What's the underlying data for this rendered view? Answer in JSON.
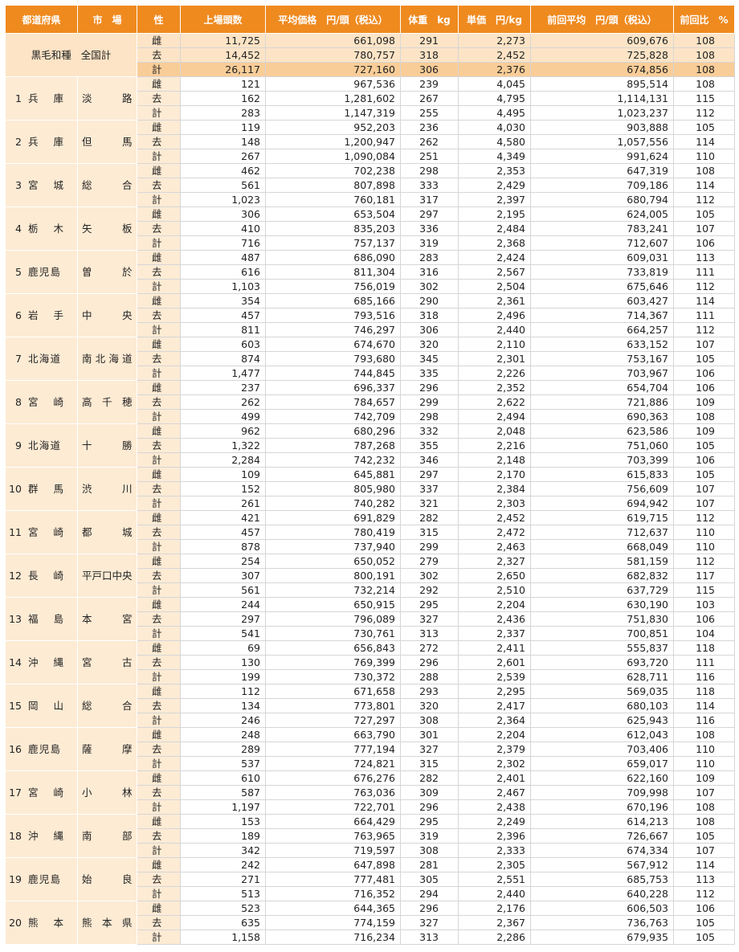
{
  "table": {
    "header": [
      "都道府県",
      "市　場",
      "性",
      "上場頭数",
      "平均価格　円/頭（税込）",
      "体重　kg",
      "単価　円/kg",
      "前回平均　円/頭（税込）",
      "前回比　%"
    ],
    "total": {
      "breed": "黒毛和種",
      "label": "全国計",
      "rows": [
        [
          "雌",
          "11,725",
          "661,098",
          "291",
          "2,273",
          "609,676",
          "108"
        ],
        [
          "去",
          "14,452",
          "780,757",
          "318",
          "2,452",
          "725,828",
          "108"
        ],
        [
          "計",
          "26,117",
          "727,160",
          "306",
          "2,376",
          "674,856",
          "108"
        ]
      ]
    },
    "markets": [
      {
        "no": "1",
        "pref": "兵庫",
        "market": "淡路",
        "rows": [
          [
            "雌",
            "121",
            "967,536",
            "239",
            "4,045",
            "895,514",
            "108"
          ],
          [
            "去",
            "162",
            "1,281,602",
            "267",
            "4,795",
            "1,114,131",
            "115"
          ],
          [
            "計",
            "283",
            "1,147,319",
            "255",
            "4,495",
            "1,023,237",
            "112"
          ]
        ]
      },
      {
        "no": "2",
        "pref": "兵庫",
        "market": "但馬",
        "rows": [
          [
            "雌",
            "119",
            "952,203",
            "236",
            "4,030",
            "903,888",
            "105"
          ],
          [
            "去",
            "148",
            "1,200,947",
            "262",
            "4,580",
            "1,057,556",
            "114"
          ],
          [
            "計",
            "267",
            "1,090,084",
            "251",
            "4,349",
            "991,624",
            "110"
          ]
        ]
      },
      {
        "no": "3",
        "pref": "宮城",
        "market": "総合",
        "rows": [
          [
            "雌",
            "462",
            "702,238",
            "298",
            "2,353",
            "647,319",
            "108"
          ],
          [
            "去",
            "561",
            "807,898",
            "333",
            "2,429",
            "709,186",
            "114"
          ],
          [
            "計",
            "1,023",
            "760,181",
            "317",
            "2,397",
            "680,794",
            "112"
          ]
        ]
      },
      {
        "no": "4",
        "pref": "栃木",
        "market": "矢板",
        "rows": [
          [
            "雌",
            "306",
            "653,504",
            "297",
            "2,195",
            "624,005",
            "105"
          ],
          [
            "去",
            "410",
            "835,203",
            "336",
            "2,484",
            "783,241",
            "107"
          ],
          [
            "計",
            "716",
            "757,137",
            "319",
            "2,368",
            "712,607",
            "106"
          ]
        ]
      },
      {
        "no": "5",
        "pref": "鹿児島",
        "market": "曽於",
        "rows": [
          [
            "雌",
            "487",
            "686,090",
            "283",
            "2,424",
            "609,031",
            "113"
          ],
          [
            "去",
            "616",
            "811,304",
            "316",
            "2,567",
            "733,819",
            "111"
          ],
          [
            "計",
            "1,103",
            "756,019",
            "302",
            "2,504",
            "675,646",
            "112"
          ]
        ]
      },
      {
        "no": "6",
        "pref": "岩手",
        "market": "中央",
        "rows": [
          [
            "雌",
            "354",
            "685,166",
            "290",
            "2,361",
            "603,427",
            "114"
          ],
          [
            "去",
            "457",
            "793,516",
            "318",
            "2,496",
            "714,367",
            "111"
          ],
          [
            "計",
            "811",
            "746,297",
            "306",
            "2,440",
            "664,257",
            "112"
          ]
        ]
      },
      {
        "no": "7",
        "pref": "北海道",
        "market": "南北海道",
        "rows": [
          [
            "雌",
            "603",
            "674,670",
            "320",
            "2,110",
            "633,152",
            "107"
          ],
          [
            "去",
            "874",
            "793,680",
            "345",
            "2,301",
            "753,167",
            "105"
          ],
          [
            "計",
            "1,477",
            "744,845",
            "335",
            "2,226",
            "703,967",
            "106"
          ]
        ]
      },
      {
        "no": "8",
        "pref": "宮崎",
        "market": "高千穂",
        "rows": [
          [
            "雌",
            "237",
            "696,337",
            "296",
            "2,352",
            "654,704",
            "106"
          ],
          [
            "去",
            "262",
            "784,657",
            "299",
            "2,622",
            "721,886",
            "109"
          ],
          [
            "計",
            "499",
            "742,709",
            "298",
            "2,494",
            "690,363",
            "108"
          ]
        ]
      },
      {
        "no": "9",
        "pref": "北海道",
        "market": "十勝",
        "rows": [
          [
            "雌",
            "962",
            "680,296",
            "332",
            "2,048",
            "623,586",
            "109"
          ],
          [
            "去",
            "1,322",
            "787,268",
            "355",
            "2,216",
            "751,060",
            "105"
          ],
          [
            "計",
            "2,284",
            "742,232",
            "346",
            "2,148",
            "703,399",
            "106"
          ]
        ]
      },
      {
        "no": "10",
        "pref": "群馬",
        "market": "渋川",
        "rows": [
          [
            "雌",
            "109",
            "645,881",
            "297",
            "2,170",
            "615,833",
            "105"
          ],
          [
            "去",
            "152",
            "805,980",
            "337",
            "2,384",
            "756,609",
            "107"
          ],
          [
            "計",
            "261",
            "740,282",
            "321",
            "2,303",
            "694,942",
            "107"
          ]
        ]
      },
      {
        "no": "11",
        "pref": "宮崎",
        "market": "都城",
        "rows": [
          [
            "雌",
            "421",
            "691,829",
            "282",
            "2,452",
            "619,715",
            "112"
          ],
          [
            "去",
            "457",
            "780,419",
            "315",
            "2,472",
            "712,637",
            "110"
          ],
          [
            "計",
            "878",
            "737,940",
            "299",
            "2,463",
            "668,049",
            "110"
          ]
        ]
      },
      {
        "no": "12",
        "pref": "長崎",
        "market": "平戸口中央",
        "rows": [
          [
            "雌",
            "254",
            "650,052",
            "279",
            "2,327",
            "581,159",
            "112"
          ],
          [
            "去",
            "307",
            "800,191",
            "302",
            "2,650",
            "682,832",
            "117"
          ],
          [
            "計",
            "561",
            "732,214",
            "292",
            "2,510",
            "637,729",
            "115"
          ]
        ]
      },
      {
        "no": "13",
        "pref": "福島",
        "market": "本宮",
        "rows": [
          [
            "雌",
            "244",
            "650,915",
            "295",
            "2,204",
            "630,190",
            "103"
          ],
          [
            "去",
            "297",
            "796,089",
            "327",
            "2,436",
            "751,830",
            "106"
          ],
          [
            "計",
            "541",
            "730,761",
            "313",
            "2,337",
            "700,851",
            "104"
          ]
        ]
      },
      {
        "no": "14",
        "pref": "沖縄",
        "market": "宮古",
        "rows": [
          [
            "雌",
            "69",
            "656,843",
            "272",
            "2,411",
            "555,837",
            "118"
          ],
          [
            "去",
            "130",
            "769,399",
            "296",
            "2,601",
            "693,720",
            "111"
          ],
          [
            "計",
            "199",
            "730,372",
            "288",
            "2,539",
            "628,711",
            "116"
          ]
        ]
      },
      {
        "no": "15",
        "pref": "岡山",
        "market": "総合",
        "rows": [
          [
            "雌",
            "112",
            "671,658",
            "293",
            "2,295",
            "569,035",
            "118"
          ],
          [
            "去",
            "134",
            "773,801",
            "320",
            "2,417",
            "680,103",
            "114"
          ],
          [
            "計",
            "246",
            "727,297",
            "308",
            "2,364",
            "625,943",
            "116"
          ]
        ]
      },
      {
        "no": "16",
        "pref": "鹿児島",
        "market": "薩摩",
        "rows": [
          [
            "雌",
            "248",
            "663,790",
            "301",
            "2,204",
            "612,043",
            "108"
          ],
          [
            "去",
            "289",
            "777,194",
            "327",
            "2,379",
            "703,406",
            "110"
          ],
          [
            "計",
            "537",
            "724,821",
            "315",
            "2,302",
            "659,017",
            "110"
          ]
        ]
      },
      {
        "no": "17",
        "pref": "宮崎",
        "market": "小林",
        "rows": [
          [
            "雌",
            "610",
            "676,276",
            "282",
            "2,401",
            "622,160",
            "109"
          ],
          [
            "去",
            "587",
            "763,036",
            "309",
            "2,467",
            "709,998",
            "107"
          ],
          [
            "計",
            "1,197",
            "722,701",
            "296",
            "2,438",
            "670,196",
            "108"
          ]
        ]
      },
      {
        "no": "18",
        "pref": "沖縄",
        "market": "南部",
        "rows": [
          [
            "雌",
            "153",
            "664,429",
            "295",
            "2,249",
            "614,213",
            "108"
          ],
          [
            "去",
            "189",
            "763,965",
            "319",
            "2,396",
            "726,667",
            "105"
          ],
          [
            "計",
            "342",
            "719,597",
            "308",
            "2,333",
            "674,334",
            "107"
          ]
        ]
      },
      {
        "no": "19",
        "pref": "鹿児島",
        "market": "始良",
        "rows": [
          [
            "雌",
            "242",
            "647,898",
            "281",
            "2,305",
            "567,912",
            "114"
          ],
          [
            "去",
            "271",
            "777,481",
            "305",
            "2,551",
            "685,753",
            "113"
          ],
          [
            "計",
            "513",
            "716,352",
            "294",
            "2,440",
            "640,228",
            "112"
          ]
        ]
      },
      {
        "no": "20",
        "pref": "熊本",
        "market": "熊本県",
        "rows": [
          [
            "雌",
            "523",
            "644,365",
            "296",
            "2,176",
            "606,503",
            "106"
          ],
          [
            "去",
            "635",
            "774,159",
            "327",
            "2,367",
            "736,763",
            "105"
          ],
          [
            "計",
            "1,158",
            "716,234",
            "313",
            "2,286",
            "679,935",
            "105"
          ]
        ]
      }
    ]
  }
}
